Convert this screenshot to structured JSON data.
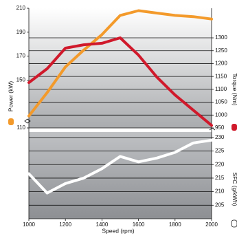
{
  "chart_data": {
    "type": "line",
    "x_label": "Speed (rpm)",
    "y_label": "Power (kW)",
    "y2_label": "Torque (Nm)",
    "y3_label": "SFC (g/kWh)",
    "x": [
      1000,
      1100,
      1200,
      1300,
      1400,
      1500,
      1600,
      1700,
      1800,
      1900,
      2000
    ],
    "xlim": [
      1000,
      2000
    ],
    "xticks": [
      1000,
      1200,
      1400,
      1600,
      1800,
      2000
    ],
    "ylim": [
      110,
      210
    ],
    "yticks": [
      110,
      150,
      170,
      190,
      210
    ],
    "y2lim": [
      950,
      1415
    ],
    "y2ticks": [
      950,
      1000,
      1050,
      1100,
      1150,
      1200,
      1250,
      1300
    ],
    "y3lim": [
      200,
      232
    ],
    "y3ticks": [
      205,
      210,
      215,
      220,
      225,
      230
    ],
    "grid": true,
    "series": [
      {
        "name": "Power (kW)",
        "color": "#f39a2b",
        "axis": "y",
        "values": [
          120,
          139.5,
          161,
          175,
          188,
          204,
          208,
          206,
          204,
          203,
          201
        ]
      },
      {
        "name": "Torque (Nm)",
        "color": "#d0192b",
        "axis": "y2",
        "values": [
          1126,
          1180,
          1260,
          1273,
          1279,
          1300,
          1233,
          1148,
          1078,
          1019,
          960
        ]
      },
      {
        "name": "SFC (g/kWh)",
        "color": "#ffffff",
        "axis": "y3",
        "values": [
          216.6,
          209.5,
          213,
          215,
          218.5,
          223,
          221,
          222.4,
          224.5,
          228,
          229
        ]
      }
    ]
  }
}
